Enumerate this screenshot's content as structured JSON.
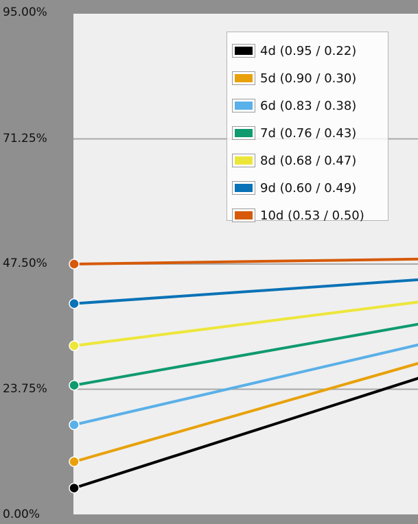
{
  "chart_data": {
    "type": "line",
    "ylim": [
      0,
      0.95
    ],
    "y_ticks": [
      "95.00%",
      "71.25%",
      "47.50%",
      "23.75%",
      "0.00%"
    ],
    "grid": true,
    "legend_position": "top-right",
    "x": [
      0,
      1
    ],
    "series": [
      {
        "name": "4d (0.95 / 0.22)",
        "color": "#000000",
        "values": [
          0.05,
          0.271
        ]
      },
      {
        "name": "5d (0.90 / 0.30)",
        "color": "#e8a10a",
        "values": [
          0.1,
          0.298
        ]
      },
      {
        "name": "6d (0.83 / 0.38)",
        "color": "#5ab0e8",
        "values": [
          0.17,
          0.331
        ]
      },
      {
        "name": "7d (0.76 / 0.43)",
        "color": "#0f9a6f",
        "values": [
          0.245,
          0.368
        ]
      },
      {
        "name": "8d (0.68 / 0.47)",
        "color": "#ede63a",
        "values": [
          0.32,
          0.408
        ]
      },
      {
        "name": "9d (0.60 / 0.49)",
        "color": "#0a72b6",
        "values": [
          0.4,
          0.448
        ]
      },
      {
        "name": "10d (0.53 / 0.50)",
        "color": "#d65a09",
        "values": [
          0.475,
          0.485
        ]
      }
    ]
  }
}
